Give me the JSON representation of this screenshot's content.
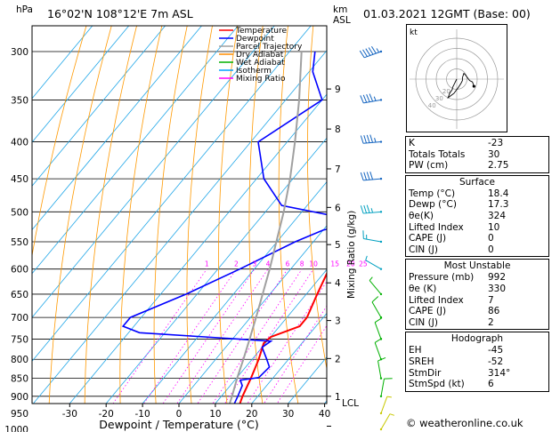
{
  "header": {
    "location": "16°02'N 108°12'E 7m ASL",
    "date": "01.03.2021 12GMT (Base: 00)",
    "copyright": "© weatheronline.co.uk"
  },
  "chart_data": {
    "type": "line",
    "title": "16°02'N 108°12'E 7m ASL",
    "xlabel": "Dewpoint / Temperature (°C)",
    "ylabel": "hPa",
    "xlim": [
      -35,
      40
    ],
    "ylim": [
      1000,
      300
    ],
    "x_ticks": [
      "-30",
      "-20",
      "-10",
      "0",
      "10",
      "20",
      "30",
      "40"
    ],
    "pressure_levels": [
      300,
      350,
      400,
      450,
      500,
      550,
      600,
      650,
      700,
      750,
      800,
      850,
      900,
      950,
      1000
    ],
    "km_label": "km",
    "asl_label": "ASL",
    "km_axis": [
      {
        "km": "1",
        "p": 900
      },
      {
        "km": "2",
        "p": 798
      },
      {
        "km": "3",
        "p": 707
      },
      {
        "km": "4",
        "p": 627
      },
      {
        "km": "5",
        "p": 555
      },
      {
        "km": "6",
        "p": 493
      },
      {
        "km": "7",
        "p": 436
      },
      {
        "km": "8",
        "p": 384
      },
      {
        "km": "9",
        "p": 338
      }
    ],
    "lcl_label": "LCL",
    "mixing_ratio_label": "Mixing Ratio (g/kg)",
    "mixing_ratio_values": [
      "1",
      "2",
      "3",
      "4",
      "6",
      "8",
      "10",
      "15",
      "20",
      "25"
    ],
    "legend": {
      "position": "top-center",
      "entries": [
        {
          "name": "Temperature",
          "color": "#ff0000"
        },
        {
          "name": "Dewpoint",
          "color": "#0000ff"
        },
        {
          "name": "Parcel Trajectory",
          "color": "#a0a0a0"
        },
        {
          "name": "Dry Adiabat",
          "color": "#ff8c00"
        },
        {
          "name": "Wet Adiabat",
          "color": "#00b000"
        },
        {
          "name": "Isotherm",
          "color": "#00a0ff"
        },
        {
          "name": "Mixing Ratio",
          "color": "#ff00ff"
        }
      ]
    },
    "series": [
      {
        "name": "Temperature",
        "color": "#ff0000",
        "points": [
          [
            1000,
            21.5
          ],
          [
            985,
            20
          ],
          [
            950,
            18
          ],
          [
            900,
            15.8
          ],
          [
            850,
            14
          ],
          [
            800,
            11.8
          ],
          [
            760,
            9.5
          ],
          [
            745,
            10
          ],
          [
            720,
            15.5
          ],
          [
            700,
            15.5
          ],
          [
            650,
            13
          ],
          [
            600,
            10.5
          ],
          [
            550,
            6.5
          ],
          [
            520,
            3
          ],
          [
            500,
            2
          ],
          [
            450,
            -4
          ],
          [
            400,
            -12
          ],
          [
            350,
            -21
          ],
          [
            320,
            -27
          ],
          [
            300,
            -31
          ]
        ]
      },
      {
        "name": "Dewpoint",
        "color": "#0000ff",
        "points": [
          [
            1000,
            17.3
          ],
          [
            990,
            17
          ],
          [
            950,
            16.2
          ],
          [
            900,
            14.5
          ],
          [
            870,
            13.3
          ],
          [
            855,
            11.5
          ],
          [
            848,
            16
          ],
          [
            820,
            16.5
          ],
          [
            800,
            14
          ],
          [
            770,
            10
          ],
          [
            755,
            11
          ],
          [
            735,
            -27
          ],
          [
            720,
            -33
          ],
          [
            700,
            -33
          ],
          [
            650,
            -23
          ],
          [
            600,
            -14
          ],
          [
            550,
            -5
          ],
          [
            530,
            0
          ],
          [
            515,
            8
          ],
          [
            490,
            -17
          ],
          [
            450,
            -28
          ],
          [
            400,
            -38
          ],
          [
            350,
            -30
          ],
          [
            320,
            -39
          ],
          [
            300,
            -43
          ]
        ]
      },
      {
        "name": "Parcel Trajectory",
        "color": "#a0a0a0",
        "points": [
          [
            1000,
            21.5
          ],
          [
            990,
            17.5
          ],
          [
            950,
            15.3
          ],
          [
            900,
            12.9
          ],
          [
            850,
            10.2
          ],
          [
            800,
            7.6
          ],
          [
            750,
            4.7
          ],
          [
            700,
            1.5
          ],
          [
            650,
            -2.0
          ],
          [
            600,
            -5.8
          ],
          [
            550,
            -10.2
          ],
          [
            500,
            -15.0
          ],
          [
            450,
            -20.8
          ],
          [
            400,
            -27.9
          ],
          [
            350,
            -36.3
          ],
          [
            300,
            -46.7
          ]
        ]
      }
    ],
    "wind_barbs": [
      {
        "p": 300,
        "dir": 250,
        "spd": 55
      },
      {
        "p": 350,
        "dir": 260,
        "spd": 45
      },
      {
        "p": 400,
        "dir": 265,
        "spd": 45
      },
      {
        "p": 450,
        "dir": 265,
        "spd": 40
      },
      {
        "p": 500,
        "dir": 265,
        "spd": 35
      },
      {
        "p": 550,
        "dir": 280,
        "spd": 15
      },
      {
        "p": 600,
        "dir": 300,
        "spd": 5
      },
      {
        "p": 650,
        "dir": 320,
        "spd": 5
      },
      {
        "p": 700,
        "dir": 330,
        "spd": 10
      },
      {
        "p": 750,
        "dir": 340,
        "spd": 10
      },
      {
        "p": 800,
        "dir": 340,
        "spd": 10
      },
      {
        "p": 850,
        "dir": 350,
        "spd": 10
      },
      {
        "p": 900,
        "dir": 10,
        "spd": 10
      },
      {
        "p": 950,
        "dir": 20,
        "spd": 5
      },
      {
        "p": 1000,
        "dir": 30,
        "spd": 5
      }
    ]
  },
  "hodograph": {
    "label": "kt",
    "rings": [
      "20",
      "30",
      "40"
    ],
    "points_kt": [
      [
        0,
        0
      ],
      [
        -1,
        -2
      ],
      [
        -3,
        -6
      ],
      [
        -3,
        -7
      ],
      [
        -5,
        -10
      ],
      [
        -6,
        -13
      ],
      [
        -2,
        -10
      ],
      [
        1,
        -6
      ],
      [
        3,
        -3
      ],
      [
        4,
        -1
      ],
      [
        4,
        1
      ],
      [
        5,
        4
      ],
      [
        6,
        3
      ],
      [
        9,
        -1
      ],
      [
        11,
        -2
      ],
      [
        12,
        -5
      ]
    ]
  },
  "indices": [
    {
      "label": "K",
      "value": "-23"
    },
    {
      "label": "Totals Totals",
      "value": "30"
    },
    {
      "label": "PW (cm)",
      "value": "2.75"
    }
  ],
  "surface": {
    "title": "Surface",
    "rows": [
      {
        "label": "Temp (°C)",
        "value": "18.4"
      },
      {
        "label": "Dewp (°C)",
        "value": "17.3"
      },
      {
        "label": "θe(K)",
        "value": "324"
      },
      {
        "label": "Lifted Index",
        "value": "10"
      },
      {
        "label": "CAPE (J)",
        "value": "0"
      },
      {
        "label": "CIN (J)",
        "value": "0"
      }
    ]
  },
  "most_unstable": {
    "title": "Most Unstable",
    "rows": [
      {
        "label": "Pressure (mb)",
        "value": "992"
      },
      {
        "label": "θe (K)",
        "value": "330"
      },
      {
        "label": "Lifted Index",
        "value": "7"
      },
      {
        "label": "CAPE (J)",
        "value": "86"
      },
      {
        "label": "CIN (J)",
        "value": "2"
      }
    ]
  },
  "hodograph_stats": {
    "title": "Hodograph",
    "rows": [
      {
        "label": "EH",
        "value": "-45"
      },
      {
        "label": "SREH",
        "value": "-52"
      },
      {
        "label": "StmDir",
        "value": "314°"
      },
      {
        "label": "StmSpd (kt)",
        "value": "6"
      }
    ]
  }
}
